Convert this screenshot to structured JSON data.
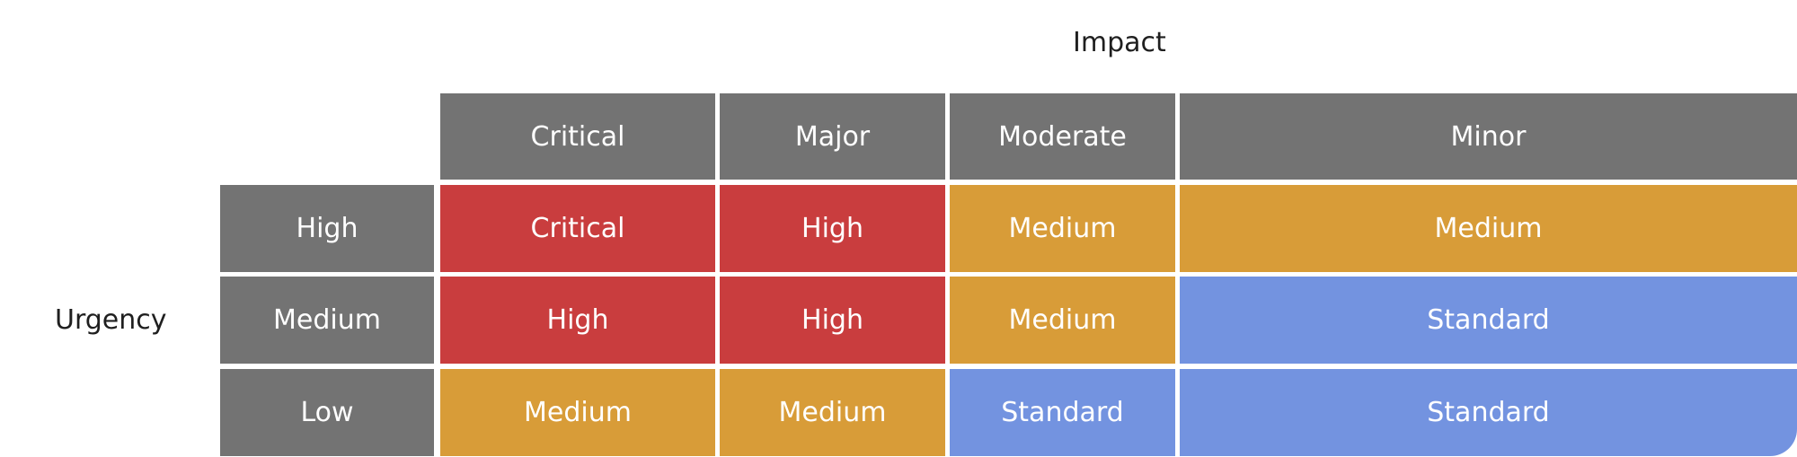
{
  "axes": {
    "impact_label": "Impact",
    "urgency_label": "Urgency"
  },
  "columns": [
    "Critical",
    "Major",
    "Moderate",
    "Minor"
  ],
  "rows": [
    {
      "label": "High",
      "cells": [
        "Critical",
        "High",
        "Medium",
        "Medium"
      ]
    },
    {
      "label": "Medium",
      "cells": [
        "High",
        "High",
        "Medium",
        "Standard"
      ]
    },
    {
      "label": "Low",
      "cells": [
        "Medium",
        "Medium",
        "Standard",
        "Standard"
      ]
    }
  ],
  "colors": {
    "header": "#737373",
    "critical": "#c93d3e",
    "high": "#c93d3e",
    "medium": "#d89c38",
    "standard": "#7393e0",
    "text_dark": "#1f1f1f",
    "text_light": "#ffffff"
  }
}
